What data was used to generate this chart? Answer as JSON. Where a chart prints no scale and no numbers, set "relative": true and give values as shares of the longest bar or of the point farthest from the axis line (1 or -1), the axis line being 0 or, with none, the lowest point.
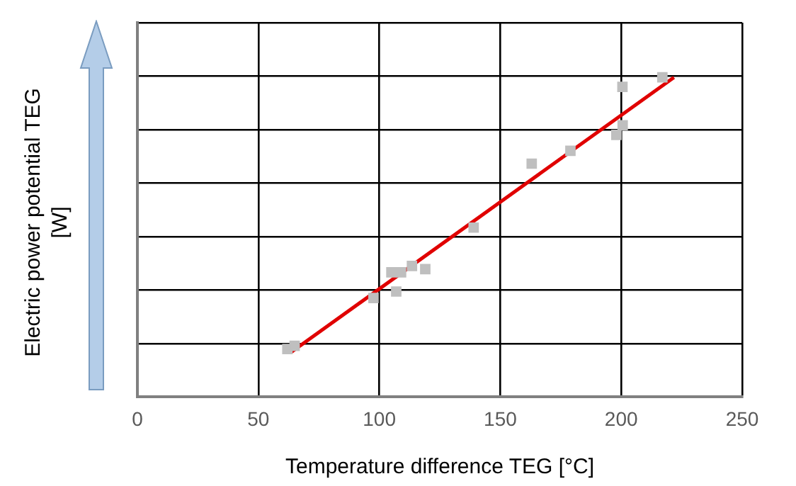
{
  "chart_data": {
    "type": "scatter",
    "xlabel": "Temperature difference TEG [°C]",
    "ylabel": "Electric power potential TEG [W]",
    "relative": true,
    "xlim": [
      0,
      250
    ],
    "xticks": [
      0,
      50,
      100,
      150,
      200,
      250
    ],
    "grid": true,
    "marker": "square",
    "series": [
      {
        "type": "scatter",
        "color": "#bfbfbf",
        "x": [
          62,
          65,
          97.6,
          105,
          107,
          109,
          113.5,
          119,
          139,
          163,
          179,
          198,
          200.6,
          200.5,
          217
        ],
        "values": [
          0.15,
          0.16,
          0.31,
          0.39,
          0.33,
          0.39,
          0.41,
          0.4,
          0.53,
          0.73,
          0.77,
          0.82,
          0.85,
          0.97,
          1
        ]
      },
      {
        "type": "line",
        "color": "#e00000",
        "line_style": "solid",
        "marker": "none",
        "x": [
          63.5,
          221.8
        ],
        "values": [
          0.14,
          1
        ]
      }
    ]
  }
}
